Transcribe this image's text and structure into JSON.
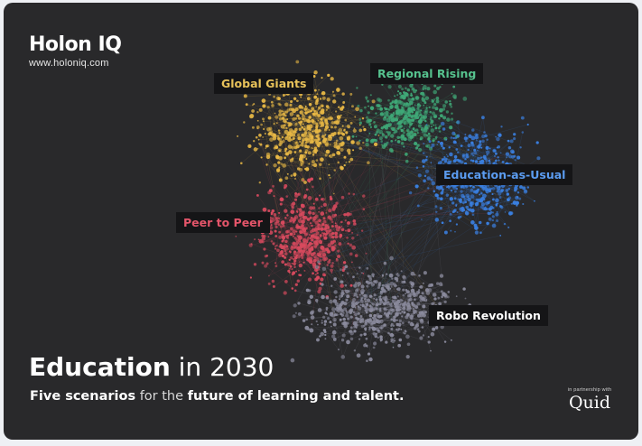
{
  "brand": {
    "name": "Holon IQ",
    "url": "www.holoniq.com"
  },
  "title": {
    "bold": "Education",
    "rest": "in 2030"
  },
  "subtitle": {
    "part1": "Five scenarios",
    "part2": "for the",
    "part3": "future of learning and talent."
  },
  "clusters": [
    {
      "label": "Global Giants",
      "color": "#e8b845"
    },
    {
      "label": "Regional Rising",
      "color": "#3fa877"
    },
    {
      "label": "Education-as-Usual",
      "color": "#3a7fe0"
    },
    {
      "label": "Peer to Peer",
      "color": "#d84a5e"
    },
    {
      "label": "Robo Revolution",
      "color": "#8a8a9c"
    }
  ],
  "partner": {
    "caption": "in partnership with",
    "logo": "Quid"
  }
}
